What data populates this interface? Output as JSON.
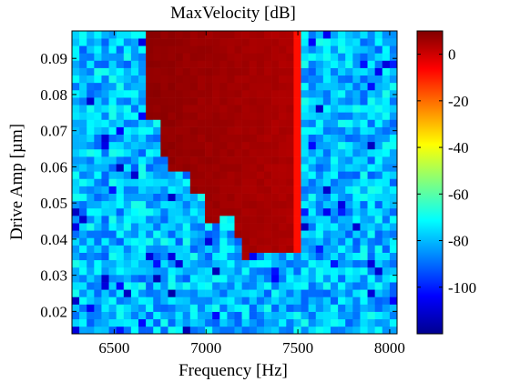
{
  "chart_data": {
    "type": "heatmap",
    "title": "MaxVelocity [dB]",
    "xlabel": "Frequency [Hz]",
    "ylabel": "Drive Amp [µm]",
    "xlim": [
      6270,
      8040
    ],
    "ylim": [
      0.0138,
      0.0976
    ],
    "x_ticks": [
      6500,
      7000,
      7500,
      8000
    ],
    "x_tick_labels": [
      "6500",
      "7000",
      "7500",
      "8000"
    ],
    "y_ticks": [
      0.02,
      0.03,
      0.04,
      0.05,
      0.06,
      0.07,
      0.08,
      0.09
    ],
    "y_tick_labels": [
      "0.02",
      "0.03",
      "0.04",
      "0.05",
      "0.06",
      "0.07",
      "0.08",
      "0.09"
    ],
    "colormap": "jet",
    "clim": [
      -120,
      10
    ],
    "colorbar_ticks": [
      0,
      -20,
      -40,
      -60,
      -80,
      -100
    ],
    "colorbar_tick_labels": [
      "0",
      "-20",
      "-40",
      "-60",
      "-80",
      "-100"
    ],
    "grid": false,
    "background_level_db": -80,
    "resonance_region": {
      "description": "high-velocity band",
      "level_db_range": [
        0,
        5
      ],
      "x_range": [
        6680,
        7500
      ],
      "lower_edge": [
        {
          "x": 6680,
          "y": 0.0976
        },
        {
          "x": 6750,
          "y": 0.073
        },
        {
          "x": 6800,
          "y": 0.063
        },
        {
          "x": 6900,
          "y": 0.059
        },
        {
          "x": 6980,
          "y": 0.053
        },
        {
          "x": 7000,
          "y": 0.047
        },
        {
          "x": 7080,
          "y": 0.045
        },
        {
          "x": 7150,
          "y": 0.047
        },
        {
          "x": 7200,
          "y": 0.04
        },
        {
          "x": 7220,
          "y": 0.035
        },
        {
          "x": 7300,
          "y": 0.036
        },
        {
          "x": 7500,
          "y": 0.036
        }
      ]
    }
  }
}
